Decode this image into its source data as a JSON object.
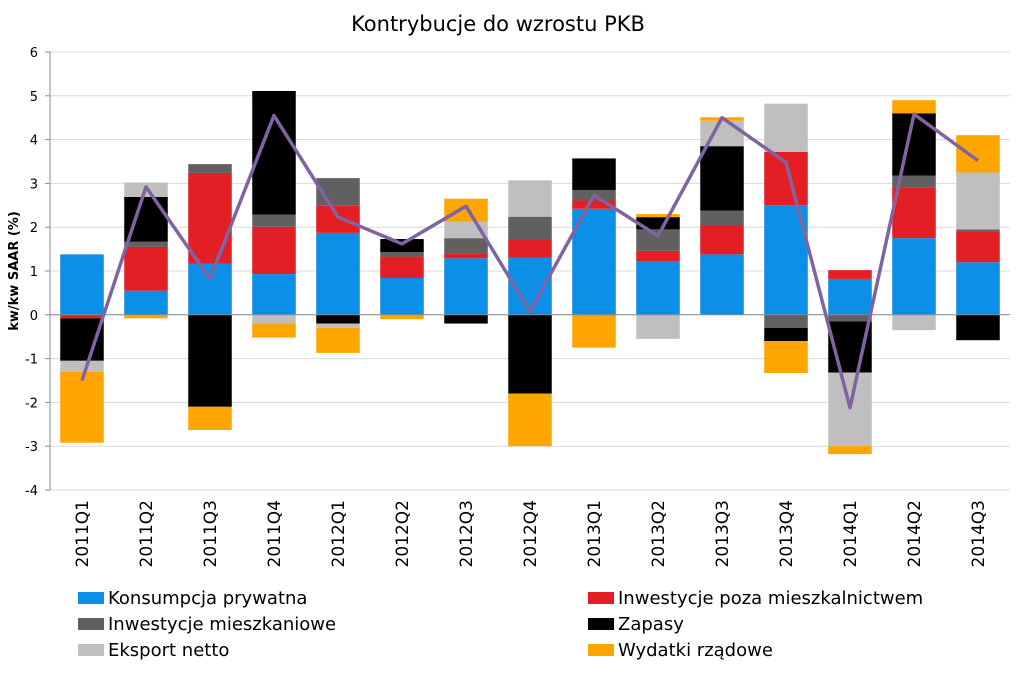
{
  "chart_data": {
    "type": "bar",
    "stacked": true,
    "title": "Kontrybucje do wzrostu PKB",
    "ylabel": "kw/kw SAAR (%)",
    "xlabel": "",
    "ylim": [
      -4,
      6
    ],
    "yticks": [
      -4,
      -3,
      -2,
      -1,
      0,
      1,
      2,
      3,
      4,
      5,
      6
    ],
    "grid": true,
    "legend_position": "bottom",
    "categories": [
      "2011Q1",
      "2011Q2",
      "2011Q3",
      "2011Q4",
      "2012Q1",
      "2012Q2",
      "2012Q3",
      "2012Q4",
      "2013Q1",
      "2013Q2",
      "2013Q3",
      "2013Q4",
      "2014Q1",
      "2014Q2",
      "2014Q3"
    ],
    "series": [
      {
        "name": "Konsumpcja prywatna",
        "color": "#0a8ee6",
        "values": [
          1.38,
          0.55,
          1.17,
          0.93,
          1.87,
          0.84,
          1.29,
          1.3,
          2.42,
          1.22,
          1.38,
          2.5,
          0.82,
          1.75,
          1.2
        ]
      },
      {
        "name": "Inwestycje poza mieszkalnictwem",
        "color": "#e31e24",
        "values": [
          -0.08,
          1.0,
          2.07,
          1.08,
          0.63,
          0.49,
          0.1,
          0.43,
          0.19,
          0.24,
          0.67,
          1.22,
          0.2,
          1.16,
          0.7
        ]
      },
      {
        "name": "Inwestycje mieszkaniowe",
        "color": "#606060",
        "values": [
          0.0,
          0.12,
          0.2,
          0.28,
          0.62,
          0.1,
          0.36,
          0.51,
          0.24,
          0.49,
          0.33,
          -0.3,
          -0.15,
          0.27,
          0.05
        ]
      },
      {
        "name": "Zapasy",
        "color": "#000000",
        "values": [
          -0.97,
          1.02,
          -2.1,
          2.82,
          -0.2,
          0.3,
          -0.2,
          -1.8,
          0.72,
          0.28,
          1.47,
          -0.3,
          -1.17,
          1.42,
          -0.58
        ]
      },
      {
        "name": "Eksport netto",
        "color": "#bfbfbf",
        "values": [
          -0.25,
          0.33,
          0.0,
          -0.2,
          -0.1,
          0.0,
          0.38,
          0.83,
          0.0,
          -0.55,
          0.58,
          1.1,
          -1.68,
          -0.35,
          1.3
        ]
      },
      {
        "name": "Wydatki rządowe",
        "color": "#ffa500",
        "values": [
          -1.62,
          -0.08,
          -0.53,
          -0.32,
          -0.57,
          -0.1,
          0.52,
          -1.2,
          -0.75,
          0.07,
          0.08,
          -0.73,
          -0.18,
          0.3,
          0.85
        ]
      }
    ],
    "total_line": {
      "color": "#8064a2",
      "values": [
        -1.5,
        2.92,
        0.82,
        4.55,
        2.23,
        1.62,
        2.48,
        0.08,
        2.73,
        1.8,
        4.5,
        3.48,
        -2.12,
        4.58,
        3.52
      ]
    }
  }
}
